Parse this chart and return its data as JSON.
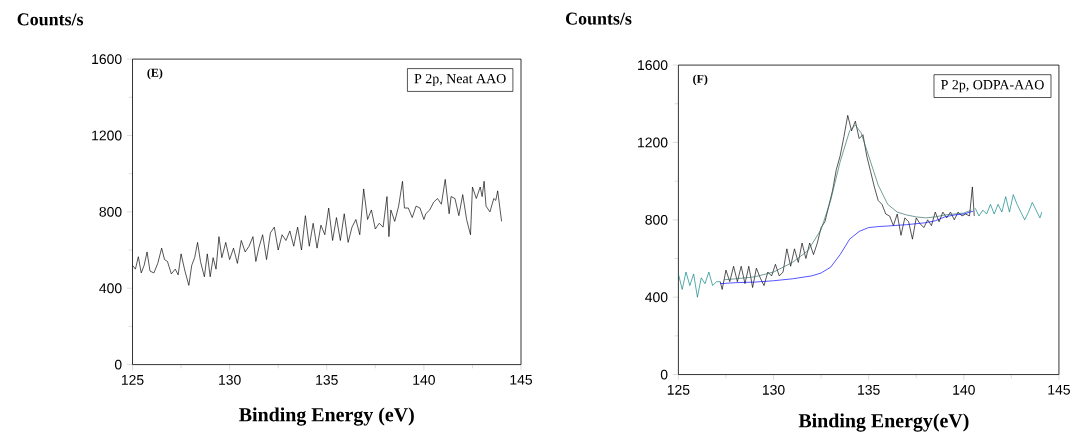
{
  "chart_data": [
    {
      "type": "line",
      "xlabel": "Binding Energy (eV)",
      "ylabel": "Counts/s",
      "annotations": [
        "(E)",
        "P 2p, Neat AAO"
      ],
      "xlim": [
        125,
        145
      ],
      "ylim": [
        0,
        1600
      ],
      "xticks": [
        125,
        130,
        135,
        140,
        145
      ],
      "yticks": [
        0,
        400,
        800,
        1200,
        1600
      ],
      "marker": "none",
      "line_style": "solid",
      "grid": false,
      "series": [
        {
          "color": "#000000",
          "x": [
            125.0,
            125.15,
            125.3,
            125.45,
            125.6,
            125.75,
            125.9,
            126.1,
            126.3,
            126.5,
            126.65,
            126.8,
            127.0,
            127.2,
            127.35,
            127.5,
            127.7,
            127.9,
            128.05,
            128.2,
            128.35,
            128.5,
            128.7,
            128.85,
            129.0,
            129.15,
            129.3,
            129.45,
            129.6,
            129.8,
            130.0,
            130.2,
            130.4,
            130.6,
            130.8,
            131.0,
            131.2,
            131.35,
            131.5,
            131.7,
            131.9,
            132.1,
            132.3,
            132.5,
            132.7,
            132.9,
            133.1,
            133.3,
            133.5,
            133.7,
            133.9,
            134.1,
            134.3,
            134.5,
            134.7,
            134.9,
            135.1,
            135.3,
            135.5,
            135.7,
            135.9,
            136.1,
            136.3,
            136.5,
            136.7,
            136.9,
            137.1,
            137.3,
            137.5,
            137.7,
            137.9,
            138.1,
            138.2,
            138.3,
            138.5,
            138.7,
            138.9,
            139.0,
            139.2,
            139.4,
            139.6,
            139.8,
            140.0,
            140.1,
            140.3,
            140.5,
            140.7,
            140.9,
            141.1,
            141.3,
            141.4,
            141.6,
            141.8,
            142.0,
            142.2,
            142.4,
            142.5,
            142.7,
            142.9,
            143.0,
            143.1,
            143.2,
            143.4,
            143.6,
            143.7,
            143.8,
            144.0
          ],
          "values": [
            520,
            500,
            565,
            480,
            520,
            590,
            490,
            480,
            530,
            610,
            550,
            540,
            475,
            500,
            470,
            580,
            490,
            415,
            520,
            560,
            640,
            540,
            460,
            580,
            460,
            560,
            500,
            670,
            560,
            640,
            550,
            610,
            530,
            650,
            590,
            620,
            670,
            540,
            610,
            680,
            550,
            690,
            720,
            600,
            680,
            650,
            700,
            620,
            720,
            600,
            780,
            620,
            740,
            610,
            730,
            680,
            820,
            650,
            770,
            650,
            790,
            640,
            720,
            760,
            680,
            920,
            760,
            810,
            710,
            740,
            720,
            880,
            670,
            810,
            750,
            830,
            960,
            820,
            820,
            770,
            830,
            820,
            760,
            790,
            810,
            850,
            870,
            840,
            970,
            790,
            880,
            870,
            780,
            890,
            760,
            680,
            930,
            870,
            930,
            880,
            960,
            830,
            800,
            870,
            860,
            910,
            750
          ]
        }
      ]
    },
    {
      "type": "line",
      "xlabel": "Binding Energy(eV)",
      "ylabel": "Counts/s",
      "annotations": [
        "(F)",
        "P 2p, ODPA-AAO"
      ],
      "xlim": [
        125,
        145
      ],
      "ylim": [
        0,
        1600
      ],
      "xticks": [
        125,
        130,
        135,
        140,
        145
      ],
      "yticks": [
        0,
        400,
        800,
        1200,
        1600
      ],
      "marker": "none",
      "line_style": "solid",
      "grid": false,
      "series": [
        {
          "color": "#008080",
          "x": [
            125.0,
            125.2,
            125.4,
            125.6,
            125.8,
            126.0,
            126.2,
            126.4,
            126.6,
            126.8,
            127.0,
            127.2
          ],
          "values": [
            520,
            440,
            530,
            460,
            520,
            400,
            500,
            470,
            530,
            460,
            480,
            480
          ]
        },
        {
          "color": "#008080",
          "x": [
            140.6,
            140.8,
            141.0,
            141.2,
            141.4,
            141.6,
            141.8,
            142.0,
            142.2,
            142.4,
            142.6,
            142.8,
            143.0,
            143.2,
            143.4,
            143.6,
            143.8,
            144.0,
            144.1
          ],
          "values": [
            860,
            820,
            850,
            830,
            880,
            830,
            880,
            840,
            920,
            840,
            930,
            880,
            840,
            800,
            840,
            890,
            850,
            810,
            840
          ]
        },
        {
          "color": "#000000",
          "x": [
            127.2,
            127.3,
            127.5,
            127.7,
            127.9,
            128.1,
            128.3,
            128.5,
            128.7,
            128.9,
            129.1,
            129.3,
            129.5,
            129.7,
            129.9,
            130.1,
            130.3,
            130.5,
            130.7,
            130.9,
            131.1,
            131.3,
            131.5,
            131.7,
            131.9,
            132.1,
            132.3,
            132.5,
            132.7,
            132.9,
            133.1,
            133.3,
            133.5,
            133.7,
            133.9,
            134.1,
            134.3,
            134.5,
            134.7,
            134.9,
            135.1,
            135.3,
            135.5,
            135.7,
            135.9,
            136.1,
            136.3,
            136.5,
            136.7,
            136.9,
            137.1,
            137.3,
            137.5,
            137.7,
            137.9,
            138.1,
            138.3,
            138.5,
            138.7,
            138.9,
            139.1,
            139.3,
            139.5,
            139.7,
            139.9,
            140.1,
            140.3,
            140.45,
            140.55
          ],
          "values": [
            480,
            440,
            540,
            480,
            560,
            480,
            560,
            470,
            560,
            450,
            550,
            500,
            460,
            530,
            510,
            570,
            510,
            530,
            650,
            560,
            650,
            580,
            680,
            600,
            680,
            620,
            680,
            760,
            790,
            870,
            950,
            1060,
            1130,
            1230,
            1340,
            1260,
            1310,
            1220,
            1240,
            1130,
            1050,
            970,
            900,
            880,
            830,
            820,
            770,
            830,
            720,
            810,
            790,
            700,
            810,
            780,
            760,
            800,
            770,
            840,
            790,
            840,
            810,
            840,
            800,
            840,
            820,
            830,
            820,
            970,
            820
          ]
        },
        {
          "color": "#2e6b66",
          "x": [
            127.4,
            128,
            129,
            130,
            131,
            131.8,
            132.5,
            133,
            133.5,
            134,
            134.3,
            134.6,
            135,
            135.5,
            136,
            136.5,
            137,
            137.5,
            138,
            138.5,
            139,
            139.5,
            140,
            140.4
          ],
          "values": [
            490,
            495,
            505,
            530,
            580,
            640,
            750,
            900,
            1100,
            1260,
            1290,
            1250,
            1130,
            980,
            880,
            840,
            825,
            815,
            810,
            815,
            825,
            830,
            835,
            850
          ]
        },
        {
          "color": "#0000ff",
          "x": [
            127.2,
            128,
            129,
            130,
            131,
            132,
            132.5,
            133,
            133.5,
            134,
            134.5,
            135,
            135.5,
            136,
            137,
            138,
            138.5,
            139,
            139.5,
            140,
            140.5
          ],
          "values": [
            470,
            475,
            478,
            485,
            495,
            510,
            525,
            555,
            620,
            700,
            740,
            760,
            765,
            768,
            775,
            785,
            795,
            815,
            825,
            830,
            845
          ]
        }
      ]
    }
  ]
}
